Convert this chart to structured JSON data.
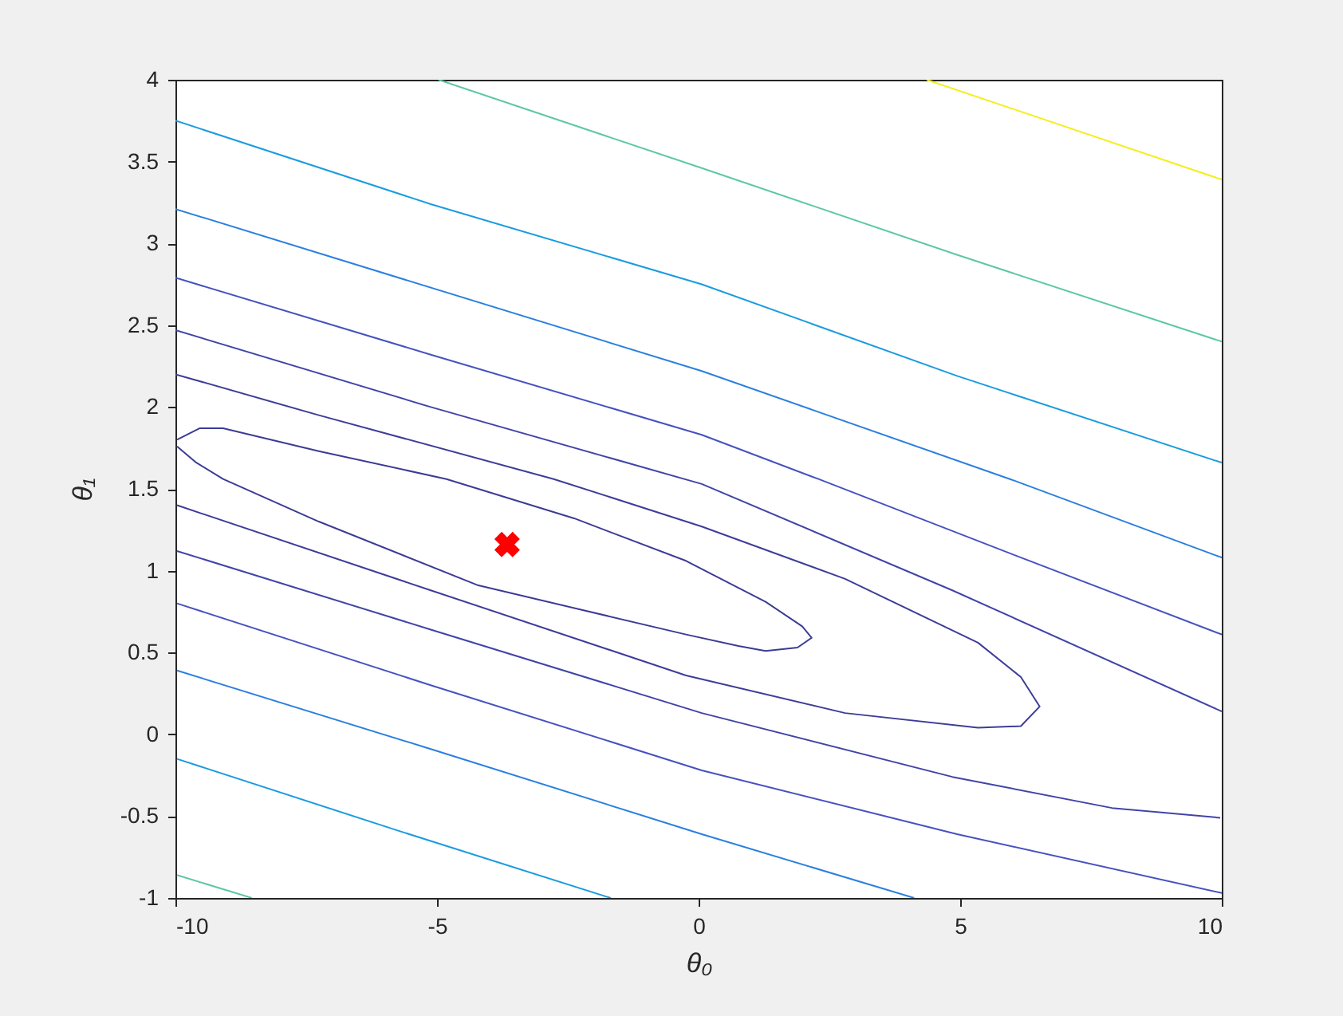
{
  "chart_data": {
    "type": "line",
    "xlabel": "θ₀",
    "ylabel": "θ₁",
    "xlim": [
      -10,
      10
    ],
    "ylim": [
      -1,
      4
    ],
    "xticks": [
      -10,
      -5,
      0,
      5,
      10
    ],
    "yticks": [
      -1,
      -0.5,
      0,
      0.5,
      1,
      1.5,
      2,
      2.5,
      3,
      3.5,
      4
    ],
    "grid": false,
    "series": [
      {
        "color": "#3b3b96",
        "x": [
          -9.97,
          -9.54,
          -9.09,
          -7.26,
          -4.82,
          -2.38,
          -0.24,
          1.28,
          1.98,
          2.16,
          1.89,
          1.28,
          0.76,
          -0.24,
          -4.21,
          -7.26,
          -9.09,
          -9.6,
          -9.97
        ],
        "values": [
          1.8,
          1.87,
          1.87,
          1.73,
          1.56,
          1.32,
          1.06,
          0.81,
          0.66,
          0.59,
          0.53,
          0.51,
          0.54,
          0.61,
          0.91,
          1.3,
          1.56,
          1.66,
          1.76
        ]
      },
      {
        "color": "#3d3d99",
        "x": [
          -10,
          -7.26,
          -2.77,
          0.06,
          2.8,
          5.34,
          6.16,
          6.52,
          6.16,
          5.34,
          2.8,
          -0.24,
          -5.12,
          -9.97
        ],
        "values": [
          2.2,
          1.95,
          1.56,
          1.27,
          0.95,
          0.56,
          0.35,
          0.17,
          0.05,
          0.04,
          0.13,
          0.36,
          0.88,
          1.4
        ]
      },
      {
        "color": "#4143a8",
        "x": [
          -10,
          -5.12,
          0.06,
          4.85,
          10
        ],
        "values": [
          2.47,
          2.0,
          1.53,
          0.88,
          0.14
        ]
      },
      {
        "color": "#4143a8",
        "x": [
          -9.97,
          -5.12,
          0.06,
          4.85,
          7.9,
          9.97
        ],
        "values": [
          1.12,
          0.64,
          0.13,
          -0.26,
          -0.45,
          -0.51
        ]
      },
      {
        "color": "#4651c0",
        "x": [
          -10,
          -5.12,
          0.06,
          2.29,
          6.16,
          10
        ],
        "values": [
          2.79,
          2.32,
          1.83,
          1.56,
          1.08,
          0.61
        ]
      },
      {
        "color": "#4651c0",
        "x": [
          -9.97,
          -5.12,
          0.06,
          4.94,
          10
        ],
        "values": [
          0.8,
          0.3,
          -0.22,
          -0.61,
          -0.97
        ]
      },
      {
        "color": "#2a7fe0",
        "x": [
          -10,
          0.06,
          5.95,
          10
        ],
        "values": [
          3.21,
          2.22,
          1.56,
          1.08
        ]
      },
      {
        "color": "#2a7fe0",
        "x": [
          -9.97,
          -5.12,
          0.06,
          4.12
        ],
        "values": [
          0.39,
          -0.09,
          -0.61,
          -1.0
        ]
      },
      {
        "color": "#1a9be0",
        "x": [
          -10,
          -5.12,
          0.06,
          4.94,
          10
        ],
        "values": [
          3.75,
          3.24,
          2.75,
          2.19,
          1.66
        ]
      },
      {
        "color": "#1a9be0",
        "x": [
          -9.97,
          -5.73,
          -1.68
        ],
        "values": [
          -0.15,
          -0.59,
          -1.0
        ]
      },
      {
        "color": "#5ec8a0",
        "x": [
          -4.97,
          0.06,
          4.94,
          10
        ],
        "values": [
          4,
          3.46,
          2.93,
          2.4
        ]
      },
      {
        "color": "#5ec8a0",
        "x": [
          -9.97,
          -8.54
        ],
        "values": [
          -0.86,
          -1.0
        ]
      },
      {
        "color": "#f4ee1c",
        "x": [
          4.36,
          10
        ],
        "values": [
          4,
          3.39
        ]
      },
      {
        "type": "scatter",
        "marker": "cross",
        "color": "#ff0000",
        "x": [
          -3.66
        ],
        "values": [
          1.16
        ]
      }
    ]
  }
}
